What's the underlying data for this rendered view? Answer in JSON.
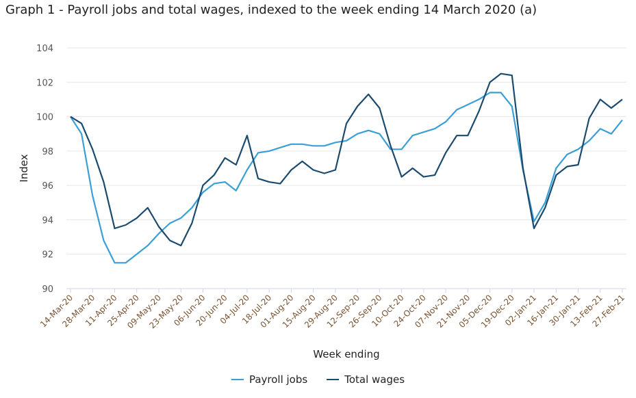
{
  "chart_data": {
    "type": "line",
    "title": "Graph 1 - Payroll jobs and total wages, indexed to the week ending 14 March 2020 (a)",
    "xlabel": "Week ending",
    "ylabel": "Index",
    "ylim": [
      90,
      104
    ],
    "yticks": [
      90,
      92,
      94,
      96,
      98,
      100,
      102,
      104
    ],
    "grid": true,
    "legend_position": "bottom",
    "x": [
      "14-Mar-20",
      "21-Mar-20",
      "28-Mar-20",
      "04-Apr-20",
      "11-Apr-20",
      "18-Apr-20",
      "25-Apr-20",
      "02-May-20",
      "09-May-20",
      "16-May-20",
      "23-May-20",
      "30-May-20",
      "06-Jun-20",
      "13-Jun-20",
      "20-Jun-20",
      "27-Jun-20",
      "04-Jul-20",
      "11-Jul-20",
      "18-Jul-20",
      "25-Jul-20",
      "01-Aug-20",
      "08-Aug-20",
      "15-Aug-20",
      "22-Aug-20",
      "29-Aug-20",
      "05-Sep-20",
      "12-Sep-20",
      "19-Sep-20",
      "26-Sep-20",
      "03-Oct-20",
      "10-Oct-20",
      "17-Oct-20",
      "24-Oct-20",
      "31-Oct-20",
      "07-Nov-20",
      "14-Nov-20",
      "21-Nov-20",
      "28-Nov-20",
      "05-Dec-20",
      "12-Dec-20",
      "19-Dec-20",
      "26-Dec-20",
      "02-Jan-21",
      "09-Jan-21",
      "16-Jan-21",
      "23-Jan-21",
      "30-Jan-21",
      "06-Feb-21",
      "13-Feb-21",
      "20-Feb-21",
      "27-Feb-21"
    ],
    "xtick_labels": [
      "14-Mar-20",
      "28-Mar-20",
      "11-Apr-20",
      "25-Apr-20",
      "09-May-20",
      "23-May-20",
      "06-Jun-20",
      "20-Jun-20",
      "04-Jul-20",
      "18-Jul-20",
      "01-Aug-20",
      "15-Aug-20",
      "29-Aug-20",
      "12-Sep-20",
      "26-Sep-20",
      "10-Oct-20",
      "24-Oct-20",
      "07-Nov-20",
      "21-Nov-20",
      "05-Dec-20",
      "19-Dec-20",
      "02-Jan-21",
      "16-Jan-21",
      "30-Jan-21",
      "13-Feb-21",
      "27-Feb-21"
    ],
    "series": [
      {
        "name": "Payroll jobs",
        "color": "#3a9fd6",
        "values": [
          100.0,
          99.0,
          95.4,
          92.8,
          91.5,
          91.5,
          92.0,
          92.5,
          93.2,
          93.8,
          94.1,
          94.7,
          95.6,
          96.1,
          96.2,
          95.7,
          96.9,
          97.9,
          98.0,
          98.2,
          98.4,
          98.4,
          98.3,
          98.3,
          98.5,
          98.6,
          99.0,
          99.2,
          99.0,
          98.1,
          98.1,
          98.9,
          99.1,
          99.3,
          99.7,
          100.4,
          100.7,
          101.0,
          101.4,
          101.4,
          100.6,
          96.9,
          93.9,
          95.0,
          97.0,
          97.8,
          98.1,
          98.6,
          99.3,
          99.0,
          99.8
        ]
      },
      {
        "name": "Total wages",
        "color": "#1b4a6f",
        "values": [
          100.0,
          99.6,
          98.1,
          96.2,
          93.5,
          93.7,
          94.1,
          94.7,
          93.6,
          92.8,
          92.5,
          93.8,
          96.0,
          96.6,
          97.6,
          97.2,
          98.9,
          96.4,
          96.2,
          96.1,
          96.9,
          97.4,
          96.9,
          96.7,
          96.9,
          99.6,
          100.6,
          101.3,
          100.5,
          98.3,
          96.5,
          97.0,
          96.5,
          96.6,
          97.9,
          98.9,
          98.9,
          100.3,
          102.0,
          102.5,
          102.4,
          97.0,
          93.5,
          94.7,
          96.6,
          97.1,
          97.2,
          99.9,
          101.0,
          100.5,
          101.0
        ]
      }
    ]
  }
}
